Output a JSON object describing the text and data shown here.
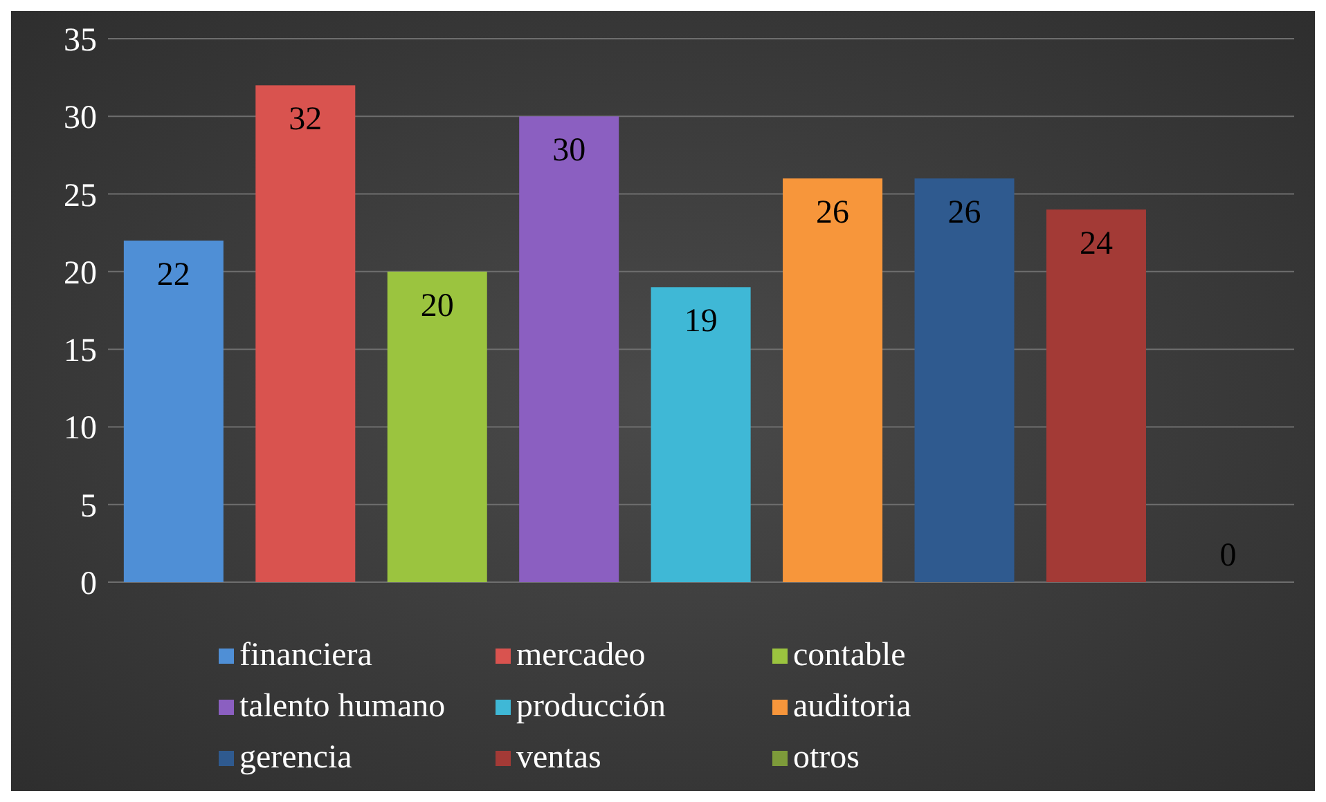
{
  "chart_data": {
    "type": "bar",
    "categories": [
      null,
      null,
      null,
      null,
      null,
      null,
      null,
      null,
      null
    ],
    "stacked": true,
    "series": [
      {
        "name": "financiera",
        "color": "#4f8fd6",
        "values": [
          22,
          null,
          null,
          null,
          null,
          null,
          null,
          null,
          null
        ]
      },
      {
        "name": "mercadeo",
        "color": "#d9534f",
        "values": [
          null,
          32,
          null,
          null,
          null,
          null,
          null,
          null,
          null
        ]
      },
      {
        "name": "contable",
        "color": "#9bc43f",
        "values": [
          null,
          null,
          20,
          null,
          null,
          null,
          null,
          null,
          null
        ]
      },
      {
        "name": "talento humano",
        "color": "#8b5fc1",
        "values": [
          null,
          null,
          null,
          30,
          null,
          null,
          null,
          null,
          null
        ]
      },
      {
        "name": "producción",
        "color": "#3fb8d6",
        "values": [
          null,
          null,
          null,
          null,
          19,
          null,
          null,
          null,
          null
        ]
      },
      {
        "name": "auditoria",
        "color": "#f7963b",
        "values": [
          null,
          null,
          null,
          null,
          null,
          26,
          null,
          null,
          null
        ]
      },
      {
        "name": "gerencia",
        "color": "#2f5a8f",
        "values": [
          null,
          null,
          null,
          null,
          null,
          null,
          26,
          null,
          null
        ]
      },
      {
        "name": "ventas",
        "color": "#a33a36",
        "values": [
          null,
          null,
          null,
          null,
          null,
          null,
          null,
          24,
          null
        ]
      },
      {
        "name": "otros",
        "color": "#7d9b3a",
        "values": [
          null,
          null,
          null,
          null,
          null,
          null,
          null,
          null,
          0
        ]
      }
    ],
    "ylim": [
      0,
      35
    ],
    "yticks": [
      0,
      5,
      10,
      15,
      20,
      25,
      30,
      35
    ],
    "grid": "y",
    "legend": "bottom",
    "data_labels": true
  }
}
